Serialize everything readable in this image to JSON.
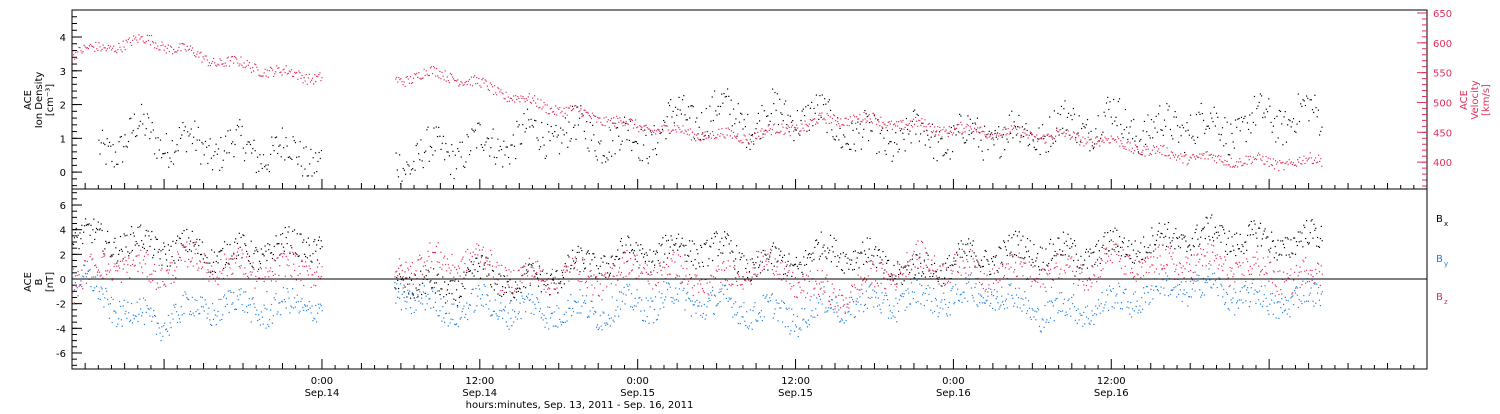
{
  "chart_data": [
    {
      "panel": "top",
      "type": "scatter",
      "title": "",
      "ylabel_left": [
        "ACE",
        "Ion Density",
        "[cm⁻³]"
      ],
      "ylabel_right": [
        "ACE",
        "Velocity",
        "[km/s]"
      ],
      "xlim_hours": [
        -19,
        84
      ],
      "ylim_left": [
        -0.5,
        4.8
      ],
      "ylim_right": [
        355,
        655
      ],
      "yticks_left": [
        "0",
        "1",
        "2",
        "3",
        "4"
      ],
      "yticks_right": [
        "400",
        "450",
        "500",
        "550",
        "600",
        "650"
      ],
      "colors": {
        "density": "#000000",
        "velocity": "#e0305a"
      },
      "density_anchors_hours": [
        -17,
        -14,
        -10,
        -6,
        -3,
        -1,
        6,
        9,
        12,
        15,
        18,
        21,
        24,
        27,
        30,
        33,
        36,
        39,
        42,
        45,
        48,
        51,
        54,
        57,
        60,
        63,
        66,
        69,
        72,
        75,
        76
      ],
      "density_anchor_values": [
        0.6,
        1.2,
        0.8,
        0.7,
        0.6,
        0.5,
        0.4,
        0.6,
        0.8,
        1.0,
        1.2,
        1.1,
        0.9,
        1.6,
        1.8,
        1.5,
        1.8,
        1.4,
        0.9,
        1.1,
        1.0,
        1.1,
        1.2,
        1.4,
        1.6,
        1.2,
        1.5,
        1.3,
        1.6,
        1.7,
        1.6
      ],
      "velocity_anchors_hours": [
        -19,
        -17,
        -15,
        -13,
        -11,
        -8,
        -5,
        -3,
        -1,
        6,
        8,
        10,
        12,
        14,
        16,
        18,
        20,
        22,
        24,
        26,
        28,
        30,
        32,
        34,
        36,
        38,
        40,
        42,
        44,
        46,
        48,
        50,
        52,
        54,
        56,
        58,
        60,
        62,
        64,
        66,
        68,
        70,
        72,
        74,
        76
      ],
      "velocity_anchor_values": [
        585,
        590,
        600,
        605,
        590,
        570,
        560,
        550,
        545,
        540,
        550,
        545,
        530,
        515,
        500,
        490,
        480,
        470,
        460,
        455,
        450,
        445,
        445,
        450,
        460,
        470,
        475,
        470,
        465,
        460,
        455,
        455,
        450,
        445,
        445,
        440,
        435,
        425,
        415,
        410,
        405,
        405,
        400,
        400,
        405
      ]
    },
    {
      "panel": "bottom",
      "type": "scatter",
      "title": "",
      "ylabel_left": [
        "ACE",
        "B",
        "[nT]"
      ],
      "xlim_hours": [
        -19,
        84
      ],
      "ylim": [
        -7.3,
        7.3
      ],
      "yticks": [
        "-6",
        "-4",
        "-2",
        "0",
        "2",
        "4",
        "6"
      ],
      "xlabel": "hours:minutes, Sep. 13, 2011 - Sep. 16, 2011",
      "x_tick_hours": [
        0,
        12,
        24,
        36,
        48,
        60
      ],
      "x_tick_labels": [
        [
          "0:00",
          "Sep.14"
        ],
        [
          "12:00",
          "Sep.14"
        ],
        [
          "0:00",
          "Sep.15"
        ],
        [
          "12:00",
          "Sep.15"
        ],
        [
          "0:00",
          "Sep.16"
        ],
        [
          "12:00",
          "Sep.16"
        ]
      ],
      "series": [
        {
          "name": "B",
          "subscript": "x",
          "color": "#000000",
          "anchors_hours": [
            -19,
            -15,
            -11,
            -7,
            -3,
            -1,
            6,
            9,
            12,
            15,
            18,
            21,
            24,
            27,
            30,
            33,
            36,
            39,
            42,
            45,
            48,
            51,
            54,
            57,
            60,
            63,
            66,
            69,
            72,
            74,
            76
          ],
          "anchor_values": [
            3.5,
            3.0,
            2.5,
            2.0,
            2.5,
            3.0,
            0.0,
            -1.0,
            0.5,
            -0.5,
            0.5,
            1.5,
            2.0,
            2.5,
            2.5,
            1.0,
            1.5,
            2.5,
            1.5,
            0.5,
            1.5,
            2.0,
            2.5,
            2.0,
            2.5,
            3.0,
            3.5,
            3.5,
            3.0,
            3.0,
            3.5
          ]
        },
        {
          "name": "B",
          "subscript": "y",
          "color": "#2080e0",
          "anchors_hours": [
            -19,
            -16,
            -13,
            -10,
            -7,
            -4,
            -1,
            6,
            9,
            12,
            15,
            18,
            21,
            24,
            27,
            30,
            33,
            36,
            39,
            42,
            45,
            48,
            51,
            54,
            57,
            60,
            63,
            66,
            69,
            72,
            74,
            76
          ],
          "anchor_values": [
            0.5,
            -2.0,
            -3.5,
            -2.5,
            -2.0,
            -2.5,
            -2.0,
            -1.0,
            -2.5,
            -2.0,
            -2.5,
            -2.5,
            -2.5,
            -2.0,
            -1.5,
            -2.0,
            -2.5,
            -3.0,
            -2.0,
            -2.0,
            -1.5,
            -1.5,
            -1.0,
            -2.5,
            -2.5,
            -2.0,
            -1.0,
            -0.5,
            -1.0,
            -2.0,
            -1.5,
            -1.5
          ]
        },
        {
          "name": "B",
          "subscript": "z",
          "color": "#e0305a",
          "anchors_hours": [
            -19,
            -16,
            -13,
            -10,
            -7,
            -4,
            -1,
            6,
            9,
            12,
            15,
            18,
            21,
            24,
            27,
            30,
            33,
            36,
            39,
            42,
            45,
            48,
            51,
            54,
            57,
            60,
            63,
            66,
            69,
            72,
            74,
            76
          ],
          "anchor_values": [
            -0.5,
            1.5,
            0.5,
            1.5,
            1.0,
            0.5,
            1.0,
            1.0,
            1.5,
            1.5,
            0.0,
            0.5,
            0.0,
            1.0,
            0.5,
            -0.5,
            1.5,
            0.0,
            -1.5,
            0.0,
            1.5,
            1.0,
            0.5,
            0.5,
            0.5,
            1.5,
            1.0,
            1.5,
            1.0,
            0.5,
            0.0,
            0.5
          ]
        }
      ]
    }
  ]
}
